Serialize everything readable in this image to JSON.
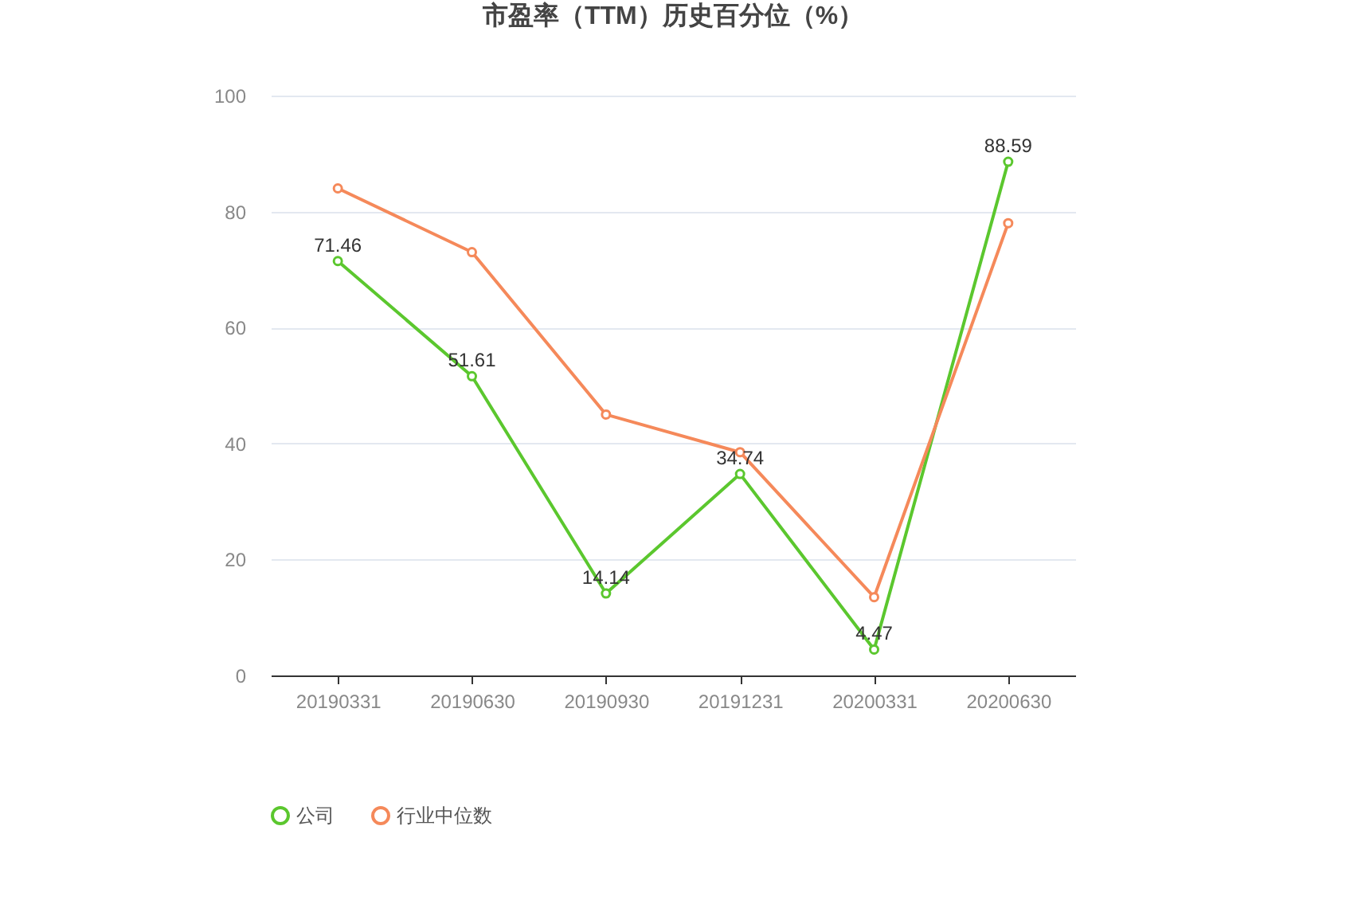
{
  "chart_data": {
    "type": "line",
    "title": "市盈率（TTM）历史百分位（%）",
    "categories": [
      "20190331",
      "20190630",
      "20190930",
      "20191231",
      "20200331",
      "20200630"
    ],
    "series": [
      {
        "name": "公司",
        "color": "#5bc72e",
        "values": [
          71.46,
          51.61,
          14.14,
          34.74,
          4.47,
          88.59
        ],
        "value_labels": [
          "71.46",
          "51.61",
          "14.14",
          "34.74",
          "4.47",
          "88.59"
        ]
      },
      {
        "name": "行业中位数",
        "color": "#f5895a",
        "values": [
          84,
          73,
          45,
          38.5,
          13.5,
          78
        ]
      }
    ],
    "ylim": [
      0,
      100
    ],
    "yticks": [
      0,
      20,
      40,
      60,
      80,
      100
    ],
    "grid": "y",
    "legend": "bottom",
    "marker": "circle",
    "line_style": "solid"
  }
}
